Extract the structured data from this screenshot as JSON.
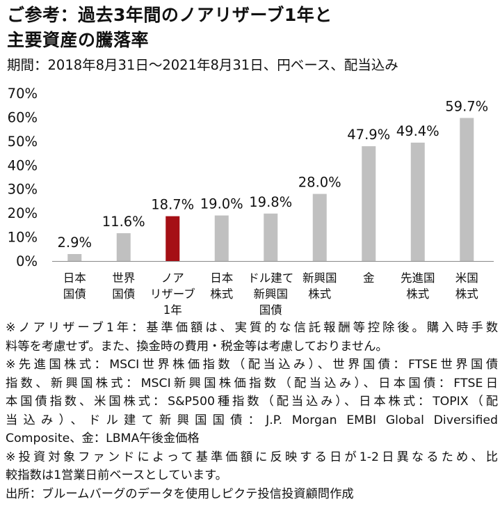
{
  "title": {
    "line1": "ご参考：過去3年間のノアリザーブ1年と",
    "line2": "主要資産の騰落率"
  },
  "subtitle": "期間：2018年8月31日～2021年8月31日、円ベース、配当込み",
  "chart_data": {
    "type": "bar",
    "title": "",
    "xlabel": "",
    "ylabel": "",
    "ylim": [
      0,
      70
    ],
    "yticks": [
      "0%",
      "10%",
      "20%",
      "30%",
      "40%",
      "50%",
      "60%",
      "70%"
    ],
    "grid": false,
    "legend": "none",
    "categories": [
      [
        "日本",
        "国債"
      ],
      [
        "世界",
        "国債"
      ],
      [
        "ノア",
        "リザーブ",
        "1年"
      ],
      [
        "日本",
        "株式"
      ],
      [
        "ドル建て",
        "新興国",
        "国債"
      ],
      [
        "新興国",
        "株式"
      ],
      [
        "金"
      ],
      [
        "先進国",
        "株式"
      ],
      [
        "米国",
        "株式"
      ]
    ],
    "values": [
      2.9,
      11.6,
      18.7,
      19.0,
      19.8,
      28.0,
      47.9,
      49.4,
      59.7
    ],
    "value_labels": [
      "2.9%",
      "11.6%",
      "18.7%",
      "19.0%",
      "19.8%",
      "28.0%",
      "47.9%",
      "49.4%",
      "59.7%"
    ],
    "highlight_index": 2,
    "colors": {
      "bar": "#c0c0c0",
      "highlight": "#a50f15",
      "axis": "#888888",
      "text": "#111111"
    }
  },
  "notes": [
    "※ノアリザーブ1年：基準価額は、実質的な信託報酬等控除後。購入時手数",
    "料等を考慮せず。また、換金時の費用・税金等は考慮しておりません。",
    "※先進国株式：MSCI世界株価指数（配当込み）、世界国債：FTSE世界国債",
    "指数、新興国株式：MSCI新興国株価指数（配当込み）、日本国債：FTSE日",
    "本国債指数、米国株式：S&P500種指数（配当込み）、日本株式：TOPIX（配",
    "当込み）、ドル建て新興国国債：J.P. Morgan EMBI Global Diversified",
    "Composite、金：LBMA午後金価格",
    "※投資対象ファンドによって基準価額に反映する日が1-2日異なるため、比",
    "較指数は1営業日前ベースとしています。",
    "出所：ブルームバーグのデータを使用しピクテ投信投資顧問作成"
  ]
}
